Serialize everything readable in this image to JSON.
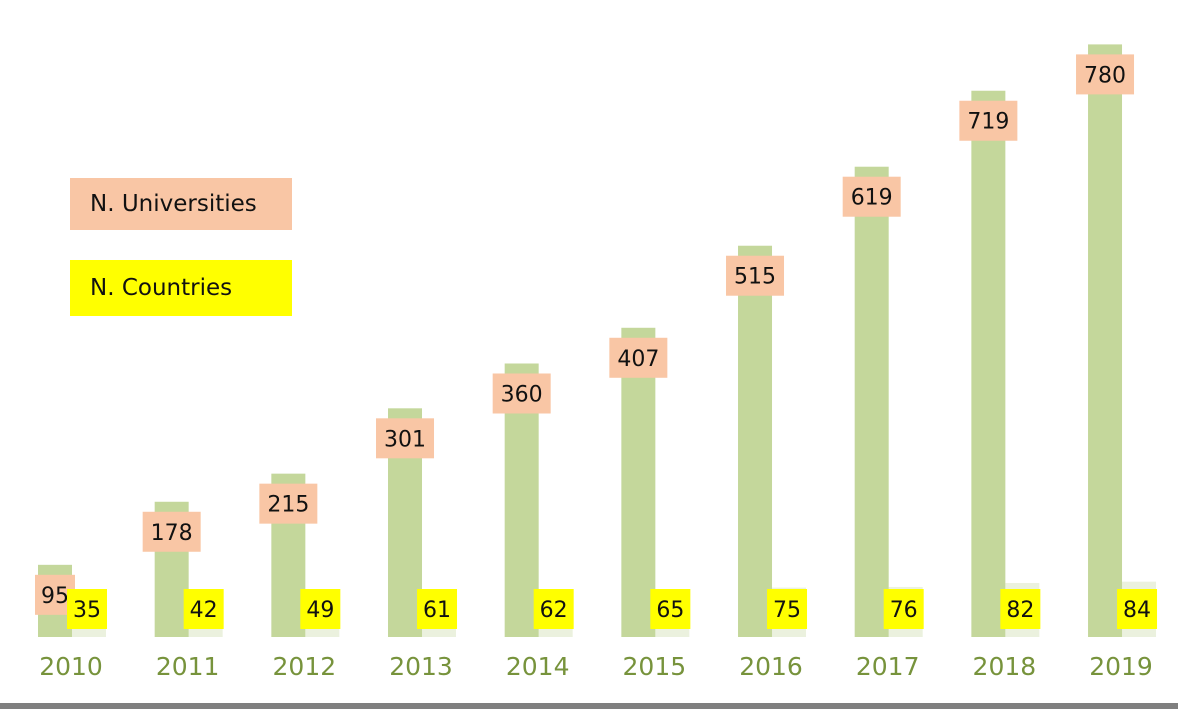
{
  "chart_data": {
    "type": "bar",
    "categories": [
      "2010",
      "2011",
      "2012",
      "2013",
      "2014",
      "2015",
      "2016",
      "2017",
      "2018",
      "2019"
    ],
    "series": [
      {
        "name": "N. Universities",
        "values": [
          95,
          178,
          215,
          301,
          360,
          407,
          515,
          619,
          719,
          780
        ]
      },
      {
        "name": "N. Countries",
        "values": [
          35,
          42,
          49,
          61,
          62,
          65,
          75,
          76,
          82,
          84
        ]
      }
    ],
    "legend_placement": "left",
    "grid": false,
    "colors": {
      "universities_bar": "#c4d79b",
      "universities_label": "#f9c6a5",
      "countries_bar": "#ebf1de",
      "countries_label": "#ffff00",
      "axis_text": "#77933c"
    }
  }
}
